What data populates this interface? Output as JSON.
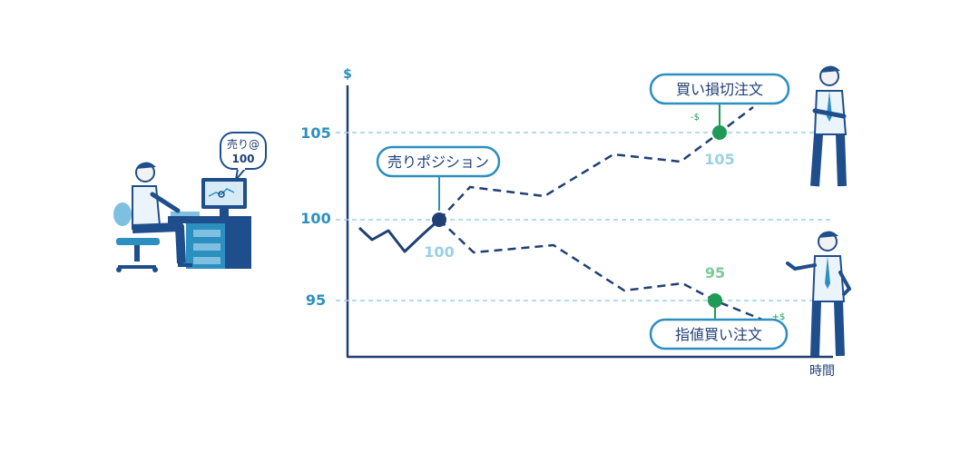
{
  "axis": {
    "y_unit": "$",
    "x_label": "時間",
    "ticks": [
      "105",
      "100",
      "95"
    ]
  },
  "trader_screen": {
    "line1": "売り@",
    "line2": "100"
  },
  "callouts": {
    "sell_position": "売りポジション",
    "buy_stop": "買い損切注文",
    "buy_limit": "指値買い注文"
  },
  "values": {
    "entry": "100",
    "stop": "105",
    "limit": "95"
  },
  "markers": {
    "stop_sign": "-$",
    "limit_sign": "+$"
  },
  "colors": {
    "navy": "#1F3F75",
    "blue": "#2B8FC0",
    "light_blue": "#9CCFE6",
    "green": "#1F9B57"
  }
}
